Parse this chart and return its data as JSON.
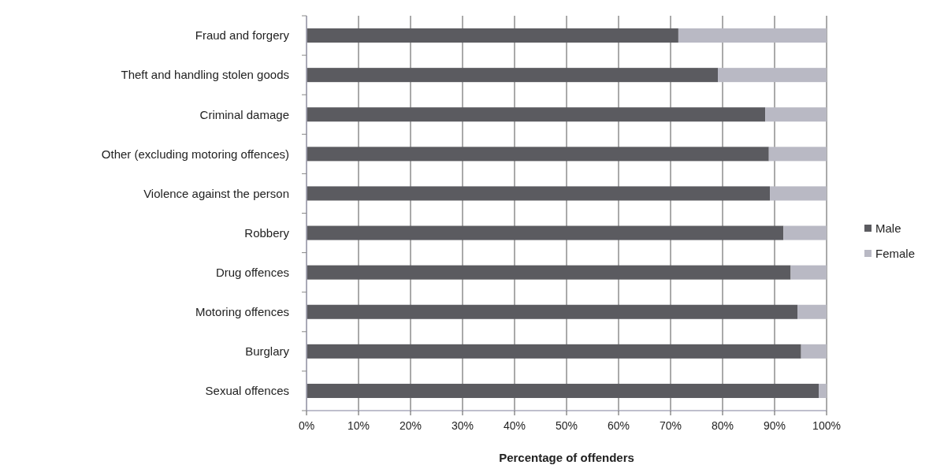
{
  "chart_data": {
    "type": "bar",
    "orientation": "horizontal",
    "stacked": true,
    "xlabel": "Percentage of offenders",
    "categories": [
      "Fraud and forgery",
      "Theft and handling stolen goods",
      "Criminal damage",
      "Other (excluding motoring offences)",
      "Violence against the person",
      "Robbery",
      "Drug offences",
      "Motoring offences",
      "Burglary",
      "Sexual offences"
    ],
    "series": [
      {
        "name": "Male",
        "color": "#5b5b60",
        "values": [
          71.5,
          79.1,
          88.2,
          88.9,
          89.1,
          91.7,
          93.1,
          94.4,
          95.1,
          98.5
        ]
      },
      {
        "name": "Female",
        "color": "#b9b9c4",
        "values": [
          28.5,
          20.9,
          11.8,
          11.1,
          10.9,
          8.3,
          6.9,
          5.6,
          4.9,
          1.5
        ]
      }
    ],
    "xlim": [
      0,
      100
    ],
    "xticks": [
      {
        "value": 0,
        "label": "0%"
      },
      {
        "value": 10,
        "label": "10%"
      },
      {
        "value": 20,
        "label": "20%"
      },
      {
        "value": 30,
        "label": "30%"
      },
      {
        "value": 40,
        "label": "40%"
      },
      {
        "value": 50,
        "label": "50%"
      },
      {
        "value": 60,
        "label": "60%"
      },
      {
        "value": 70,
        "label": "70%"
      },
      {
        "value": 80,
        "label": "80%"
      },
      {
        "value": 90,
        "label": "90%"
      },
      {
        "value": 100,
        "label": "100%"
      }
    ],
    "grid": "x",
    "legend": "right"
  }
}
